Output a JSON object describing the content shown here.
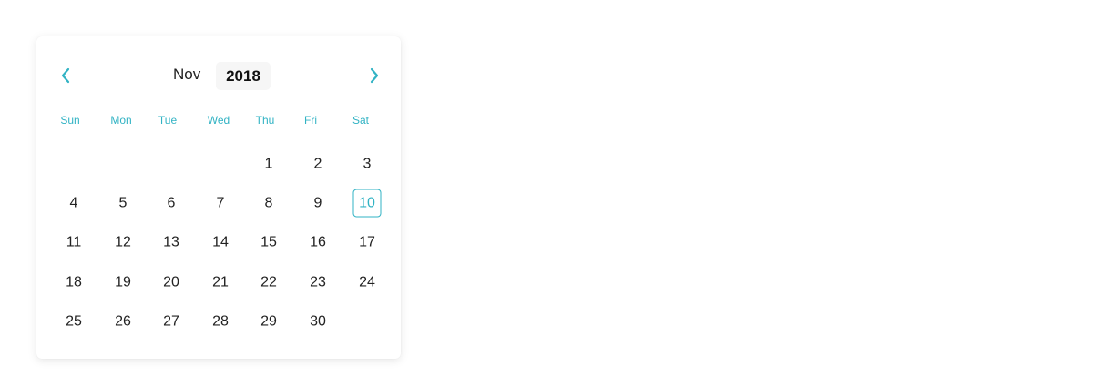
{
  "calendar": {
    "month": "Nov",
    "year": "2018",
    "prev_icon": "chevron-left-icon",
    "next_icon": "chevron-right-icon",
    "weekdays": [
      "Sun",
      "Mon",
      "Tue",
      "Wed",
      "Thu",
      "Fri",
      "Sat"
    ],
    "weeks": [
      [
        "",
        "",
        "",
        "",
        "1",
        "2",
        "3"
      ],
      [
        "4",
        "5",
        "6",
        "7",
        "8",
        "9",
        "10"
      ],
      [
        "11",
        "12",
        "13",
        "14",
        "15",
        "16",
        "17"
      ],
      [
        "18",
        "19",
        "20",
        "21",
        "22",
        "23",
        "24"
      ],
      [
        "25",
        "26",
        "27",
        "28",
        "29",
        "30",
        ""
      ]
    ],
    "highlighted_day": "10",
    "accent_color": "#32b3c4"
  }
}
